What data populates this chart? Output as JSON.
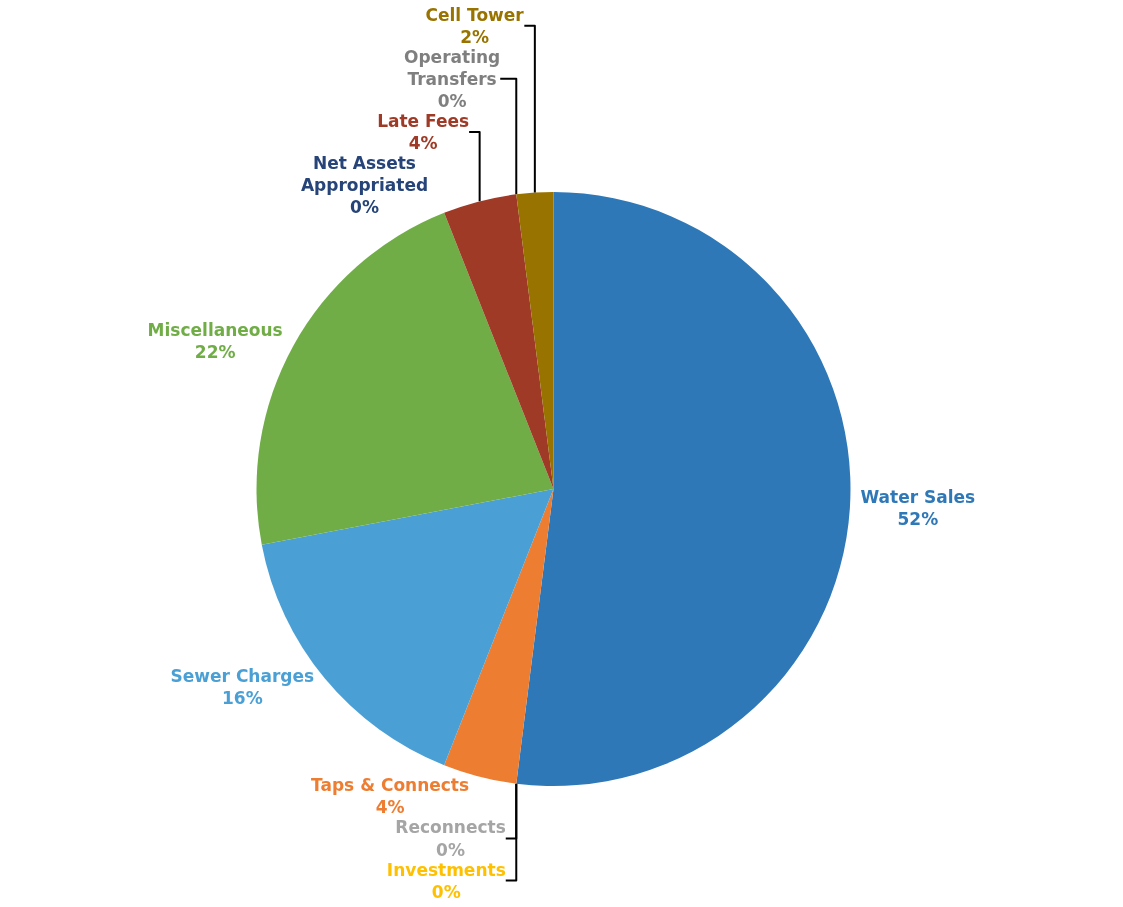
{
  "chart_data": {
    "type": "pie",
    "categories": [
      "Water Sales",
      "Reconnects",
      "Investments",
      "Taps & Connects",
      "Sewer Charges",
      "Miscellaneous",
      "Net Assets Appropriated",
      "Late Fees",
      "Operating Transfers",
      "Cell Tower"
    ],
    "values": [
      52,
      0,
      0,
      4,
      16,
      22,
      0,
      4,
      0,
      2
    ],
    "value_labels": [
      "52%",
      "0%",
      "0%",
      "4%",
      "16%",
      "22%",
      "0%",
      "4%",
      "0%",
      "2%"
    ],
    "colors": [
      "#2f78b8",
      "#a5a5a5",
      "#ffc000",
      "#ed7d31",
      "#4aa0d5",
      "#70ad47",
      "#264478",
      "#9e3a26",
      "#7f7f7f",
      "#997300"
    ],
    "legend": false
  }
}
